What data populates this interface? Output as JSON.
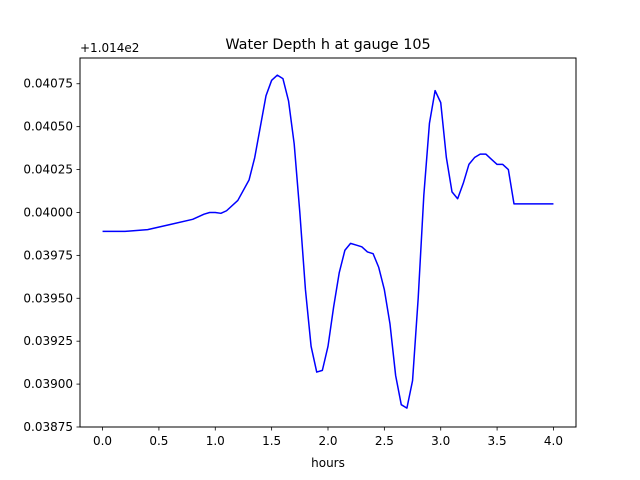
{
  "chart_data": {
    "type": "line",
    "title": "Water Depth h at gauge 105",
    "xlabel": "hours",
    "ylabel": "",
    "offset_text": "+1.014e2",
    "xlim": [
      -0.2,
      4.2
    ],
    "ylim": [
      0.03875,
      0.0409
    ],
    "x_ticks": [
      0.0,
      0.5,
      1.0,
      1.5,
      2.0,
      2.5,
      3.0,
      3.5,
      4.0
    ],
    "x_tick_labels": [
      "0.0",
      "0.5",
      "1.0",
      "1.5",
      "2.0",
      "2.5",
      "3.0",
      "3.5",
      "4.0"
    ],
    "y_ticks": [
      0.03875,
      0.039,
      0.03925,
      0.0395,
      0.03975,
      0.04,
      0.04025,
      0.0405,
      0.04075
    ],
    "y_tick_labels": [
      "0.03875",
      "0.03900",
      "0.03925",
      "0.03950",
      "0.03975",
      "0.04000",
      "0.04025",
      "0.04050",
      "0.04075"
    ],
    "grid": false,
    "series": [
      {
        "color": "#0000ff",
        "x": [
          0.0,
          0.2,
          0.4,
          0.6,
          0.8,
          0.9,
          0.95,
          1.0,
          1.05,
          1.1,
          1.2,
          1.3,
          1.35,
          1.4,
          1.45,
          1.5,
          1.55,
          1.6,
          1.65,
          1.7,
          1.75,
          1.8,
          1.85,
          1.9,
          1.95,
          2.0,
          2.05,
          2.1,
          2.15,
          2.2,
          2.25,
          2.3,
          2.35,
          2.4,
          2.45,
          2.5,
          2.55,
          2.6,
          2.65,
          2.7,
          2.75,
          2.8,
          2.85,
          2.9,
          2.95,
          3.0,
          3.05,
          3.1,
          3.15,
          3.2,
          3.25,
          3.3,
          3.35,
          3.4,
          3.45,
          3.5,
          3.55,
          3.6,
          3.65,
          3.7,
          3.75,
          3.8,
          3.85,
          3.9,
          3.95,
          4.0
        ],
        "y": [
          0.03989,
          0.03989,
          0.0399,
          0.03993,
          0.03996,
          0.03999,
          0.04,
          0.04,
          0.039995,
          0.04001,
          0.04007,
          0.04019,
          0.04032,
          0.0405,
          0.04068,
          0.04077,
          0.0408,
          0.04078,
          0.04065,
          0.0404,
          0.04,
          0.03955,
          0.03922,
          0.03907,
          0.03908,
          0.03922,
          0.03945,
          0.03965,
          0.03978,
          0.03982,
          0.03981,
          0.0398,
          0.03977,
          0.03976,
          0.03968,
          0.03955,
          0.03935,
          0.03905,
          0.03888,
          0.03886,
          0.03902,
          0.0395,
          0.0401,
          0.04052,
          0.04071,
          0.04064,
          0.04032,
          0.04012,
          0.04008,
          0.04017,
          0.04028,
          0.04032,
          0.04034,
          0.04034,
          0.04031,
          0.04028,
          0.04028,
          0.04025,
          0.04005,
          0.04005,
          0.04005,
          0.04005,
          0.04005,
          0.04005,
          0.04005,
          0.04005
        ]
      }
    ]
  }
}
